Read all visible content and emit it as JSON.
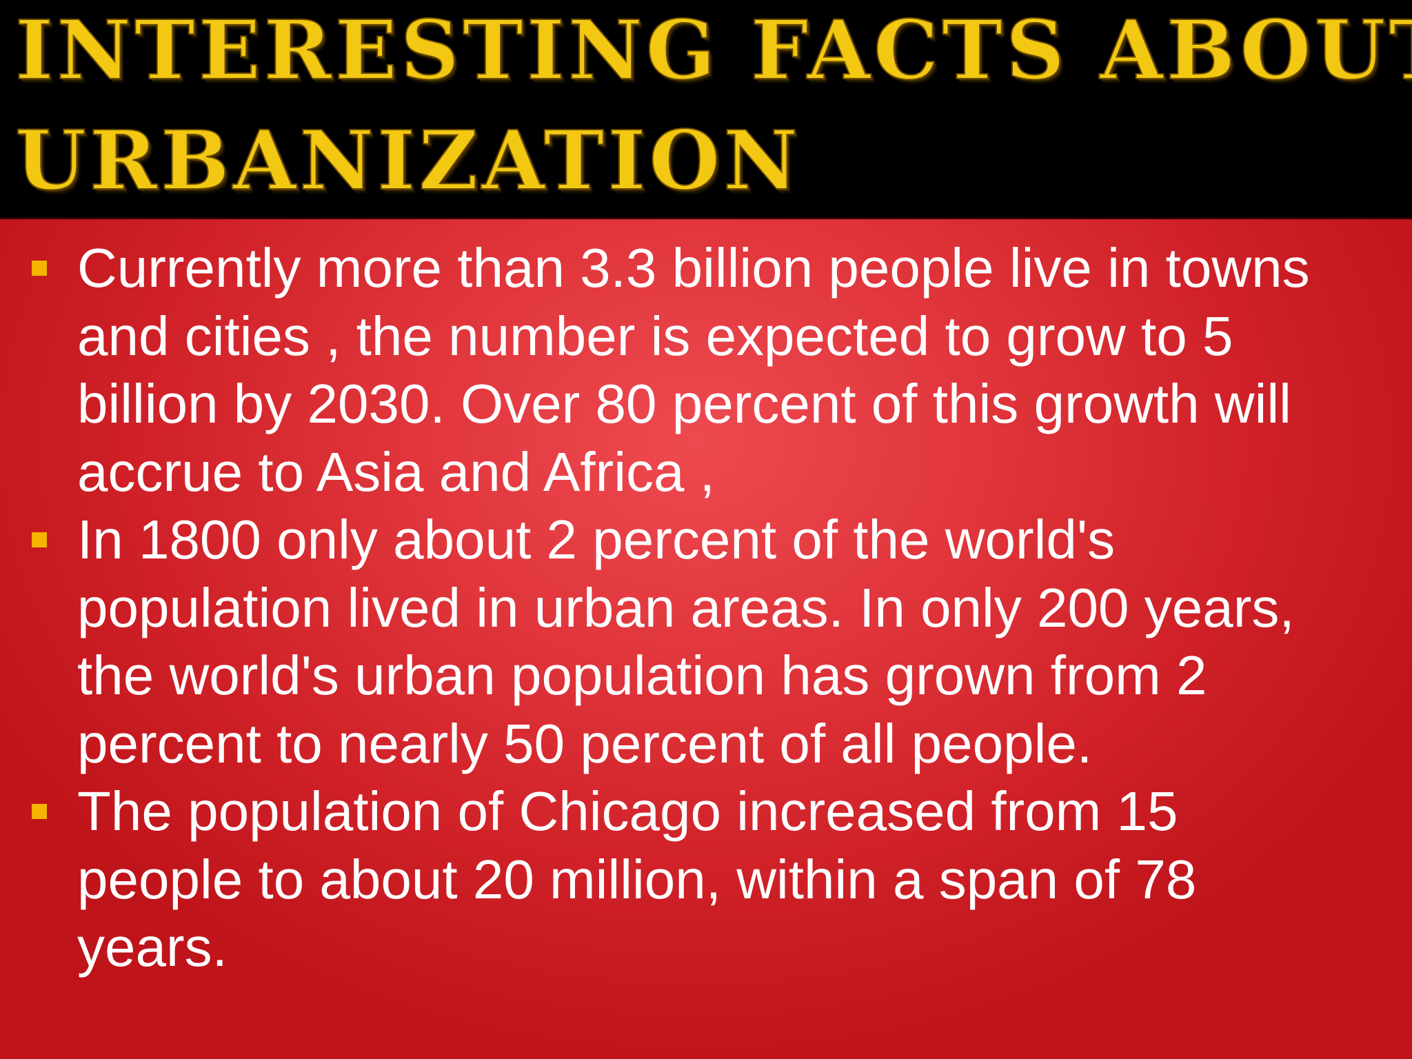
{
  "slide": {
    "title_lines": [
      "INTERESTING  FACTS  ABOUT",
      "URBANIZATION"
    ],
    "accent_color": "#f2c812",
    "background_color": "#d92a30",
    "header_background": "#000000",
    "bullet_icon": "square-bullet-icon",
    "bullet_color": "#f4b400",
    "bullets": [
      {
        "lines": [
          "Currently  more than 3.3 billion people live in towns",
          "and cities , the number is expected to grow to 5",
          "billion  by 2030. Over 80 percent of this growth will",
          "accrue to Asia and Africa ,"
        ]
      },
      {
        "lines": [
          "In 1800 only about 2 percent of the world's",
          "population lived in urban areas. In only 200 years,",
          "the world's urban population has grown from 2",
          "percent to nearly 50 percent of all people."
        ]
      },
      {
        "lines": [
          "The population of Chicago increased from 15",
          "people to about 20 million, within a span of 78",
          "years."
        ]
      }
    ]
  }
}
